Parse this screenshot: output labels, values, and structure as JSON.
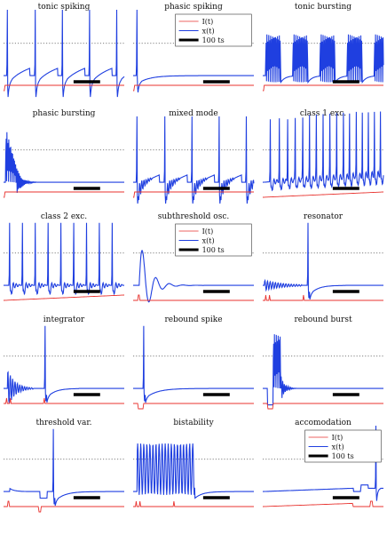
{
  "figure": {
    "legend": {
      "input": "I(t)",
      "state": "x(t)",
      "scale_bar": "100 ts"
    }
  },
  "colors": {
    "state": "#1f3fe0",
    "input": "#e8332f",
    "threshold": "#555555",
    "scale_bar": "#000000"
  },
  "chart_data": [
    {
      "type": "line",
      "title": "tonic spiking",
      "pattern": "tonic",
      "spikes": [
        5,
        42,
        78,
        114,
        150
      ],
      "input_step": 2,
      "legend": false
    },
    {
      "type": "line",
      "title": "phasic spiking",
      "pattern": "phasic",
      "spikes": [
        5
      ],
      "input_step": 2,
      "legend": true
    },
    {
      "type": "line",
      "title": "tonic bursting",
      "pattern": "tonic_burst",
      "bursts": [
        4,
        40,
        76,
        112,
        148
      ],
      "input_step": 2,
      "legend": false
    },
    {
      "type": "line",
      "title": "phasic bursting",
      "pattern": "phasic_burst",
      "bursts": [
        3
      ],
      "input_step": 2,
      "legend": false
    },
    {
      "type": "line",
      "title": "mixed mode",
      "pattern": "mixed",
      "spikes": [
        5,
        42,
        78,
        114,
        150
      ],
      "input_step": 2,
      "legend": false
    },
    {
      "type": "line",
      "title": "class 1 exc.",
      "pattern": "class1",
      "spikes": [
        10,
        22,
        33,
        43,
        53,
        62,
        71,
        80,
        89,
        98,
        107,
        115,
        124,
        132,
        140,
        148,
        156
      ],
      "input": "ramp",
      "legend": false
    },
    {
      "type": "line",
      "title": "class 2 exc.",
      "pattern": "class2",
      "spikes": [
        8,
        25,
        42,
        59,
        76,
        93,
        110,
        127,
        144
      ],
      "input": "ramp",
      "legend": false
    },
    {
      "type": "line",
      "title": "subthreshold osc.",
      "pattern": "subthreshold",
      "input": "pulse",
      "legend": true
    },
    {
      "type": "line",
      "title": "resonator",
      "pattern": "resonator",
      "input": "pulses",
      "legend": false
    },
    {
      "type": "line",
      "title": "integrator",
      "pattern": "integrator",
      "input": "pulses",
      "legend": false
    },
    {
      "type": "line",
      "title": "rebound spike",
      "pattern": "rebound_spike",
      "input": "neg_pulse",
      "legend": false
    },
    {
      "type": "line",
      "title": "rebound burst",
      "pattern": "rebound_burst",
      "input": "neg_pulse",
      "legend": false
    },
    {
      "type": "line",
      "title": "threshold var.",
      "pattern": "threshold_var",
      "input": "pulses_pm",
      "legend": false
    },
    {
      "type": "line",
      "title": "bistability",
      "pattern": "bistability",
      "input": "pulses",
      "legend": false
    },
    {
      "type": "line",
      "title": "accomodation",
      "pattern": "accomodation",
      "input": "ramp_pulse",
      "legend": true
    }
  ]
}
